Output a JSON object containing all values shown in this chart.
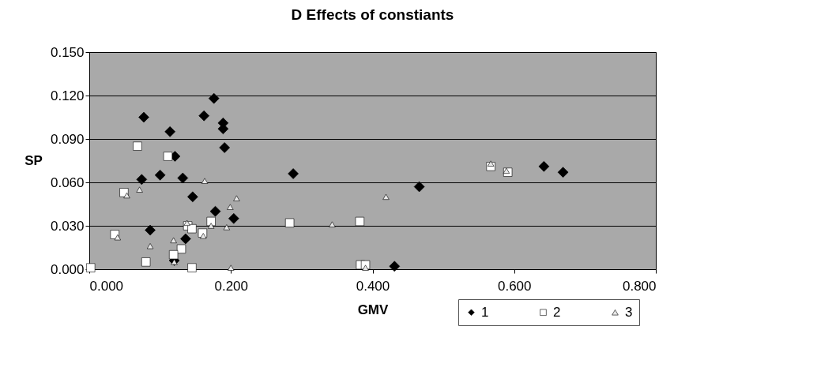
{
  "chart_data": {
    "type": "scatter",
    "title": "D   Effects of constiants",
    "xlabel": "GMV",
    "ylabel": "SP",
    "xlim": [
      0,
      0.8
    ],
    "ylim": [
      0,
      0.15
    ],
    "xticks": [
      {
        "value": 0,
        "label": "0.000"
      },
      {
        "value": 0.2,
        "label": "0.200"
      },
      {
        "value": 0.4,
        "label": "0.400"
      },
      {
        "value": 0.6,
        "label": "0.600"
      },
      {
        "value": 0.8,
        "label": "0.800"
      }
    ],
    "yticks": [
      {
        "value": 0,
        "label": "0.000"
      },
      {
        "value": 0.03,
        "label": "0.030"
      },
      {
        "value": 0.06,
        "label": "0.060"
      },
      {
        "value": 0.09,
        "label": "0.090"
      },
      {
        "value": 0.12,
        "label": "0.120"
      },
      {
        "value": 0.15,
        "label": "0.150"
      }
    ],
    "grid": "y",
    "legend": "bottom right",
    "series": [
      {
        "name": "1",
        "color": "#000000",
        "marker": "diamond",
        "x": [
          0.176,
          0.077,
          0.162,
          0.189,
          0.114,
          0.189,
          0.191,
          0.121,
          0.074,
          0.1,
          0.132,
          0.146,
          0.178,
          0.204,
          0.086,
          0.136,
          0.12,
          0.288,
          0.466,
          0.642,
          0.669,
          0.431
        ],
        "values": [
          0.118,
          0.105,
          0.106,
          0.101,
          0.095,
          0.097,
          0.084,
          0.078,
          0.062,
          0.065,
          0.063,
          0.05,
          0.04,
          0.035,
          0.027,
          0.021,
          0.006,
          0.066,
          0.057,
          0.071,
          0.067,
          0.002
        ]
      },
      {
        "name": "2",
        "color": "#ffffff",
        "marker": "square",
        "x": [
          0.068,
          0.111,
          0.049,
          0.036,
          0.139,
          0.172,
          0.16,
          0.13,
          0.119,
          0.002,
          0.08,
          0.145,
          0.145,
          0.283,
          0.382,
          0.567,
          0.591,
          0.383,
          0.39
        ],
        "values": [
          0.085,
          0.078,
          0.053,
          0.024,
          0.03,
          0.033,
          0.025,
          0.014,
          0.01,
          0.001,
          0.005,
          0.001,
          0.028,
          0.032,
          0.033,
          0.071,
          0.067,
          0.003,
          0.003
        ]
      },
      {
        "name": "3",
        "color": "#e8e8e8",
        "marker": "triangle",
        "x": [
          0.163,
          0.071,
          0.053,
          0.208,
          0.199,
          0.194,
          0.172,
          0.138,
          0.161,
          0.086,
          0.119,
          0.419,
          0.343,
          0.567,
          0.589,
          0.04,
          0.12,
          0.2,
          0.39
        ],
        "values": [
          0.061,
          0.055,
          0.051,
          0.049,
          0.043,
          0.029,
          0.03,
          0.032,
          0.023,
          0.016,
          0.02,
          0.05,
          0.031,
          0.073,
          0.068,
          0.022,
          0.005,
          0.001,
          0.001
        ]
      }
    ]
  }
}
